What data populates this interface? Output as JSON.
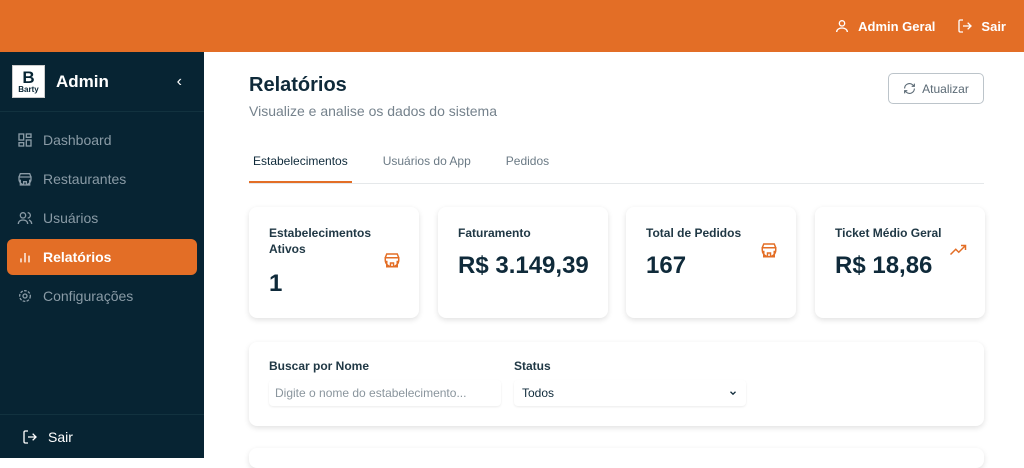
{
  "topbar": {
    "user": "Admin Geral",
    "logout": "Sair"
  },
  "sidebar": {
    "logo_text": "Barty",
    "title": "Admin",
    "collapse": "‹",
    "items": [
      {
        "label": "Dashboard"
      },
      {
        "label": "Restaurantes"
      },
      {
        "label": "Usuários"
      },
      {
        "label": "Relatórios"
      },
      {
        "label": "Configurações"
      }
    ],
    "logout": "Sair"
  },
  "page": {
    "title": "Relatórios",
    "subtitle": "Visualize e analise os dados do sistema",
    "refresh": "Atualizar"
  },
  "tabs": [
    {
      "label": "Estabelecimentos"
    },
    {
      "label": "Usuários do App"
    },
    {
      "label": "Pedidos"
    }
  ],
  "cards": [
    {
      "label": "Estabelecimentos Ativos",
      "value": "1",
      "icon": "store-icon"
    },
    {
      "label": "Faturamento",
      "value": "R$ 3.149,39"
    },
    {
      "label": "Total de Pedidos",
      "value": "167",
      "icon": "store-icon"
    },
    {
      "label": "Ticket Médio Geral",
      "value": "R$ 18,86",
      "icon": "trending-up-icon"
    }
  ],
  "filters": {
    "name_label": "Buscar por Nome",
    "name_placeholder": "Digite o nome do estabelecimento...",
    "status_label": "Status",
    "status_value": "Todos"
  },
  "colors": {
    "accent": "#e36e26",
    "sidebar": "#072433"
  }
}
